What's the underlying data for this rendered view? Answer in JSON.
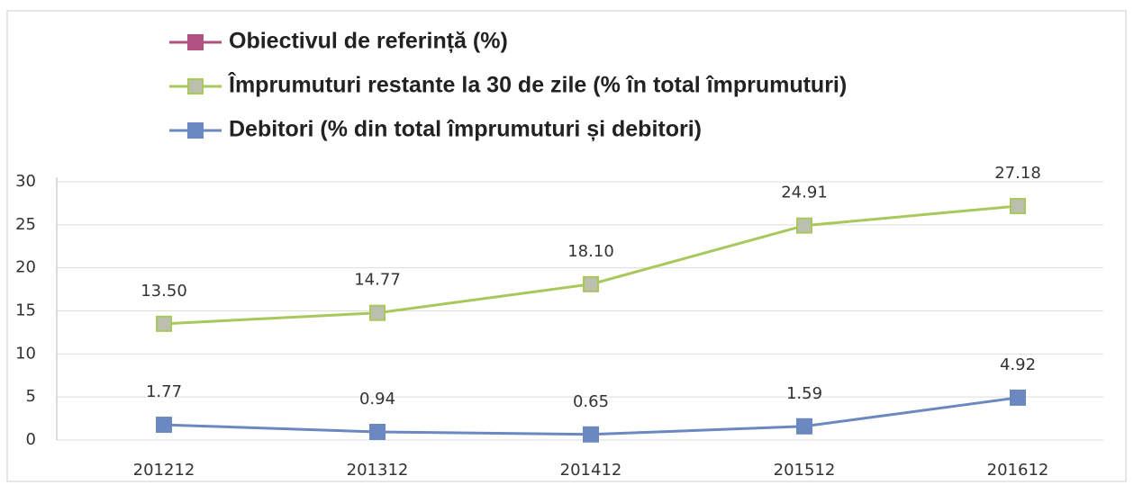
{
  "chart_data": {
    "type": "line",
    "categories": [
      "201212",
      "201312",
      "201412",
      "201512",
      "201612"
    ],
    "series": [
      {
        "name": "Obiectivul de referință (%)",
        "color": "#b0527f",
        "values": [
          null,
          null,
          null,
          null,
          null
        ]
      },
      {
        "name": "Împrumuturi restante la 30 de zile (% în total împrumuturi)",
        "color": "#a9c85c",
        "values": [
          13.5,
          14.77,
          18.1,
          24.91,
          27.18
        ],
        "value_labels": [
          "13.50",
          "14.77",
          "18.10",
          "24.91",
          "27.18"
        ]
      },
      {
        "name": "Debitori (% din total împrumuturi și debitori)",
        "color": "#6b88c0",
        "values": [
          1.77,
          0.94,
          0.65,
          1.59,
          4.92
        ]
      }
    ],
    "ylim": [
      0,
      30
    ],
    "yticks": [
      0,
      5,
      10,
      15,
      20,
      25,
      30
    ],
    "grid": true
  }
}
